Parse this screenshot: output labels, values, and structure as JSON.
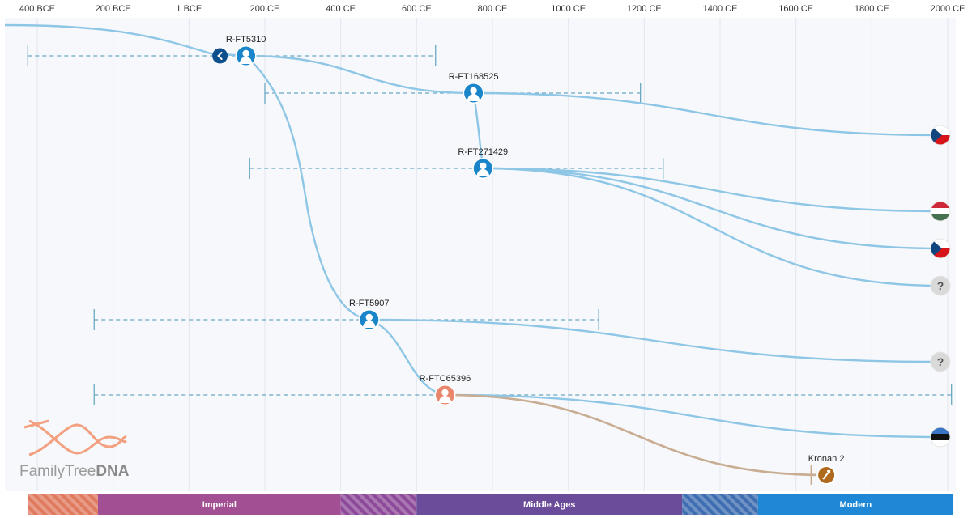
{
  "chart_data": {
    "type": "timeline-tree",
    "x_unit": "year",
    "xlim": [
      -425,
      2015
    ],
    "ticks": [
      {
        "value": -400,
        "label": "400 BCE"
      },
      {
        "value": -200,
        "label": "200 BCE"
      },
      {
        "value": 0,
        "label": "1 BCE"
      },
      {
        "value": 200,
        "label": "200 CE"
      },
      {
        "value": 400,
        "label": "400 CE"
      },
      {
        "value": 600,
        "label": "600 CE"
      },
      {
        "value": 800,
        "label": "800 CE"
      },
      {
        "value": 1000,
        "label": "1000 CE"
      },
      {
        "value": 1200,
        "label": "1200 CE"
      },
      {
        "value": 1400,
        "label": "1400 CE"
      },
      {
        "value": 1600,
        "label": "1600 CE"
      },
      {
        "value": 1800,
        "label": "1800 CE"
      },
      {
        "value": 2000,
        "label": "2000 CE"
      }
    ],
    "nodes": [
      {
        "id": "R-FT5310",
        "label": "R-FT5310",
        "year": 150,
        "ci": [
          -425,
          650
        ],
        "kind": "haplogroup"
      },
      {
        "id": "R-FT168525",
        "label": "R-FT168525",
        "year": 750,
        "ci": [
          200,
          1190
        ],
        "kind": "haplogroup"
      },
      {
        "id": "R-FT271429",
        "label": "R-FT271429",
        "year": 775,
        "ci": [
          160,
          1250
        ],
        "kind": "haplogroup"
      },
      {
        "id": "R-FT5907",
        "label": "R-FT5907",
        "year": 475,
        "ci": [
          -250,
          1080
        ],
        "kind": "haplogroup"
      },
      {
        "id": "R-FTC65396",
        "label": "R-FTC65396",
        "year": 675,
        "ci": [
          -250,
          2010
        ],
        "kind": "haplogroup-highlight"
      },
      {
        "id": "Kronan 2",
        "label": "Kronan 2",
        "year": 1680,
        "ci": [
          1640,
          1640
        ],
        "kind": "ancient-sample"
      }
    ],
    "leaves": [
      {
        "parent": "R-FT168525",
        "label": "Czech Republic",
        "flag": "czech"
      },
      {
        "parent": "R-FT271429",
        "label": "Hungary",
        "flag": "hungary"
      },
      {
        "parent": "R-FT271429",
        "label": "Czech Republic",
        "flag": "czech"
      },
      {
        "parent": "R-FT271429",
        "label": "Unknown",
        "flag": "unknown",
        "text": "?"
      },
      {
        "parent": "R-FT5907",
        "label": "Unknown",
        "flag": "unknown",
        "text": "?"
      },
      {
        "parent": "R-FTC65396",
        "label": "Estonia",
        "flag": "estonia"
      }
    ],
    "eras": [
      {
        "label": "",
        "from": -425,
        "to": -240,
        "color": "#e07a5f",
        "pattern": "stripes"
      },
      {
        "label": "Imperial",
        "from": -240,
        "to": 400,
        "color": "#a24f93",
        "pattern": "solid"
      },
      {
        "label": "",
        "from": 400,
        "to": 600,
        "color": "#8e4a9a",
        "pattern": "stripes"
      },
      {
        "label": "Middle Ages",
        "from": 600,
        "to": 1300,
        "color": "#6b4c9a",
        "pattern": "solid"
      },
      {
        "label": "",
        "from": 1300,
        "to": 1500,
        "color": "#3f6db1",
        "pattern": "stripes"
      },
      {
        "label": "Modern",
        "from": 1500,
        "to": 2015,
        "color": "#1e88d6",
        "pattern": "solid"
      }
    ],
    "colors": {
      "branch": "#8ec6e6",
      "branch_ancient": "#c8ad93",
      "node_fill": "#1a86c9",
      "node_highlight": "#e8866e",
      "ancient_node": "#b06a1e",
      "ci_line": "#6aa9c2",
      "back_button": "#0d4f8b"
    }
  },
  "logo": {
    "text_light": "FamilyTree",
    "text_bold": "DNA"
  },
  "back_button": {
    "icon": "chevron-left-icon"
  }
}
